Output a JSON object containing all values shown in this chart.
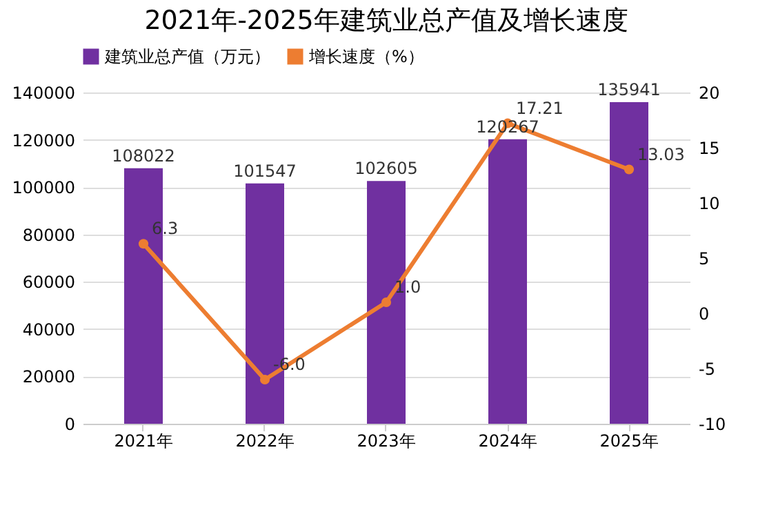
{
  "chart_data": {
    "type": "bar",
    "title": "2021年-2025年建筑业总产值及增长速度",
    "categories": [
      "2021年",
      "2022年",
      "2023年",
      "2024年",
      "2025年"
    ],
    "series": [
      {
        "name": "建筑业总产值（万元）",
        "color": "#7030a0",
        "values": [
          108022,
          101547,
          102605,
          120267,
          135941
        ],
        "value_labels": [
          "108022",
          "101547",
          "102605",
          "120267",
          "135941"
        ]
      },
      {
        "name": "增长速度（%）",
        "type": "line",
        "axis": "y2",
        "color": "#ed7d31",
        "marker": "circle",
        "values": [
          6.3,
          -6.0,
          1.0,
          17.21,
          13.03
        ],
        "value_labels": [
          "6.3",
          "-6.0",
          "1.0",
          "17.21",
          "13.03"
        ]
      }
    ],
    "ylim": [
      0,
      140000
    ],
    "yticks": [
      0,
      20000,
      40000,
      60000,
      80000,
      100000,
      120000,
      140000
    ],
    "y2lim": [
      -10,
      20
    ],
    "y2ticks": [
      -10,
      -5,
      0,
      5,
      10,
      15,
      20
    ],
    "grid": "y",
    "legend": "top"
  }
}
